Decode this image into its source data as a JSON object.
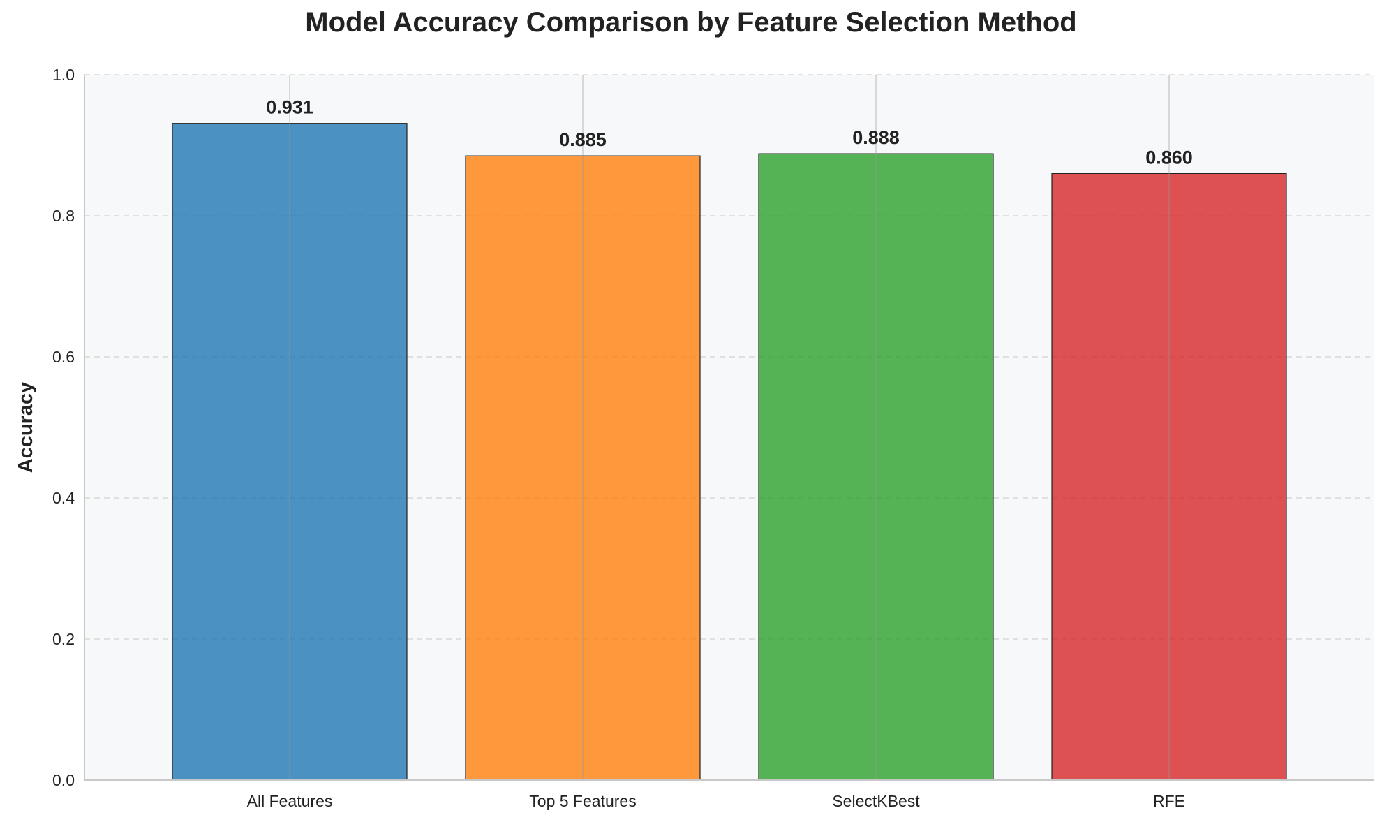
{
  "chart_data": {
    "type": "bar",
    "title": "Model Accuracy Comparison by Feature Selection Method",
    "xlabel": "",
    "ylabel": "Accuracy",
    "categories": [
      "All Features",
      "Top 5 Features",
      "SelectKBest",
      "RFE"
    ],
    "values": [
      0.931,
      0.885,
      0.888,
      0.86
    ],
    "value_labels": [
      "0.931",
      "0.885",
      "0.888",
      "0.860"
    ],
    "colors": [
      "#1f77b4",
      "#ff7f0e",
      "#2ca02c",
      "#d62728"
    ],
    "ylim": [
      0,
      1.0
    ],
    "yticks": [
      0.0,
      0.2,
      0.4,
      0.6,
      0.8,
      1.0
    ],
    "ytick_labels": [
      "0.0",
      "0.2",
      "0.4",
      "0.6",
      "0.8",
      "1.0"
    ],
    "grid": true,
    "legend": "none"
  },
  "theme": {
    "plot_background": "#f7f8fa",
    "text_color": "#222222",
    "grid_color": "#d8d8d8",
    "bar_edge_color": "#222222"
  }
}
